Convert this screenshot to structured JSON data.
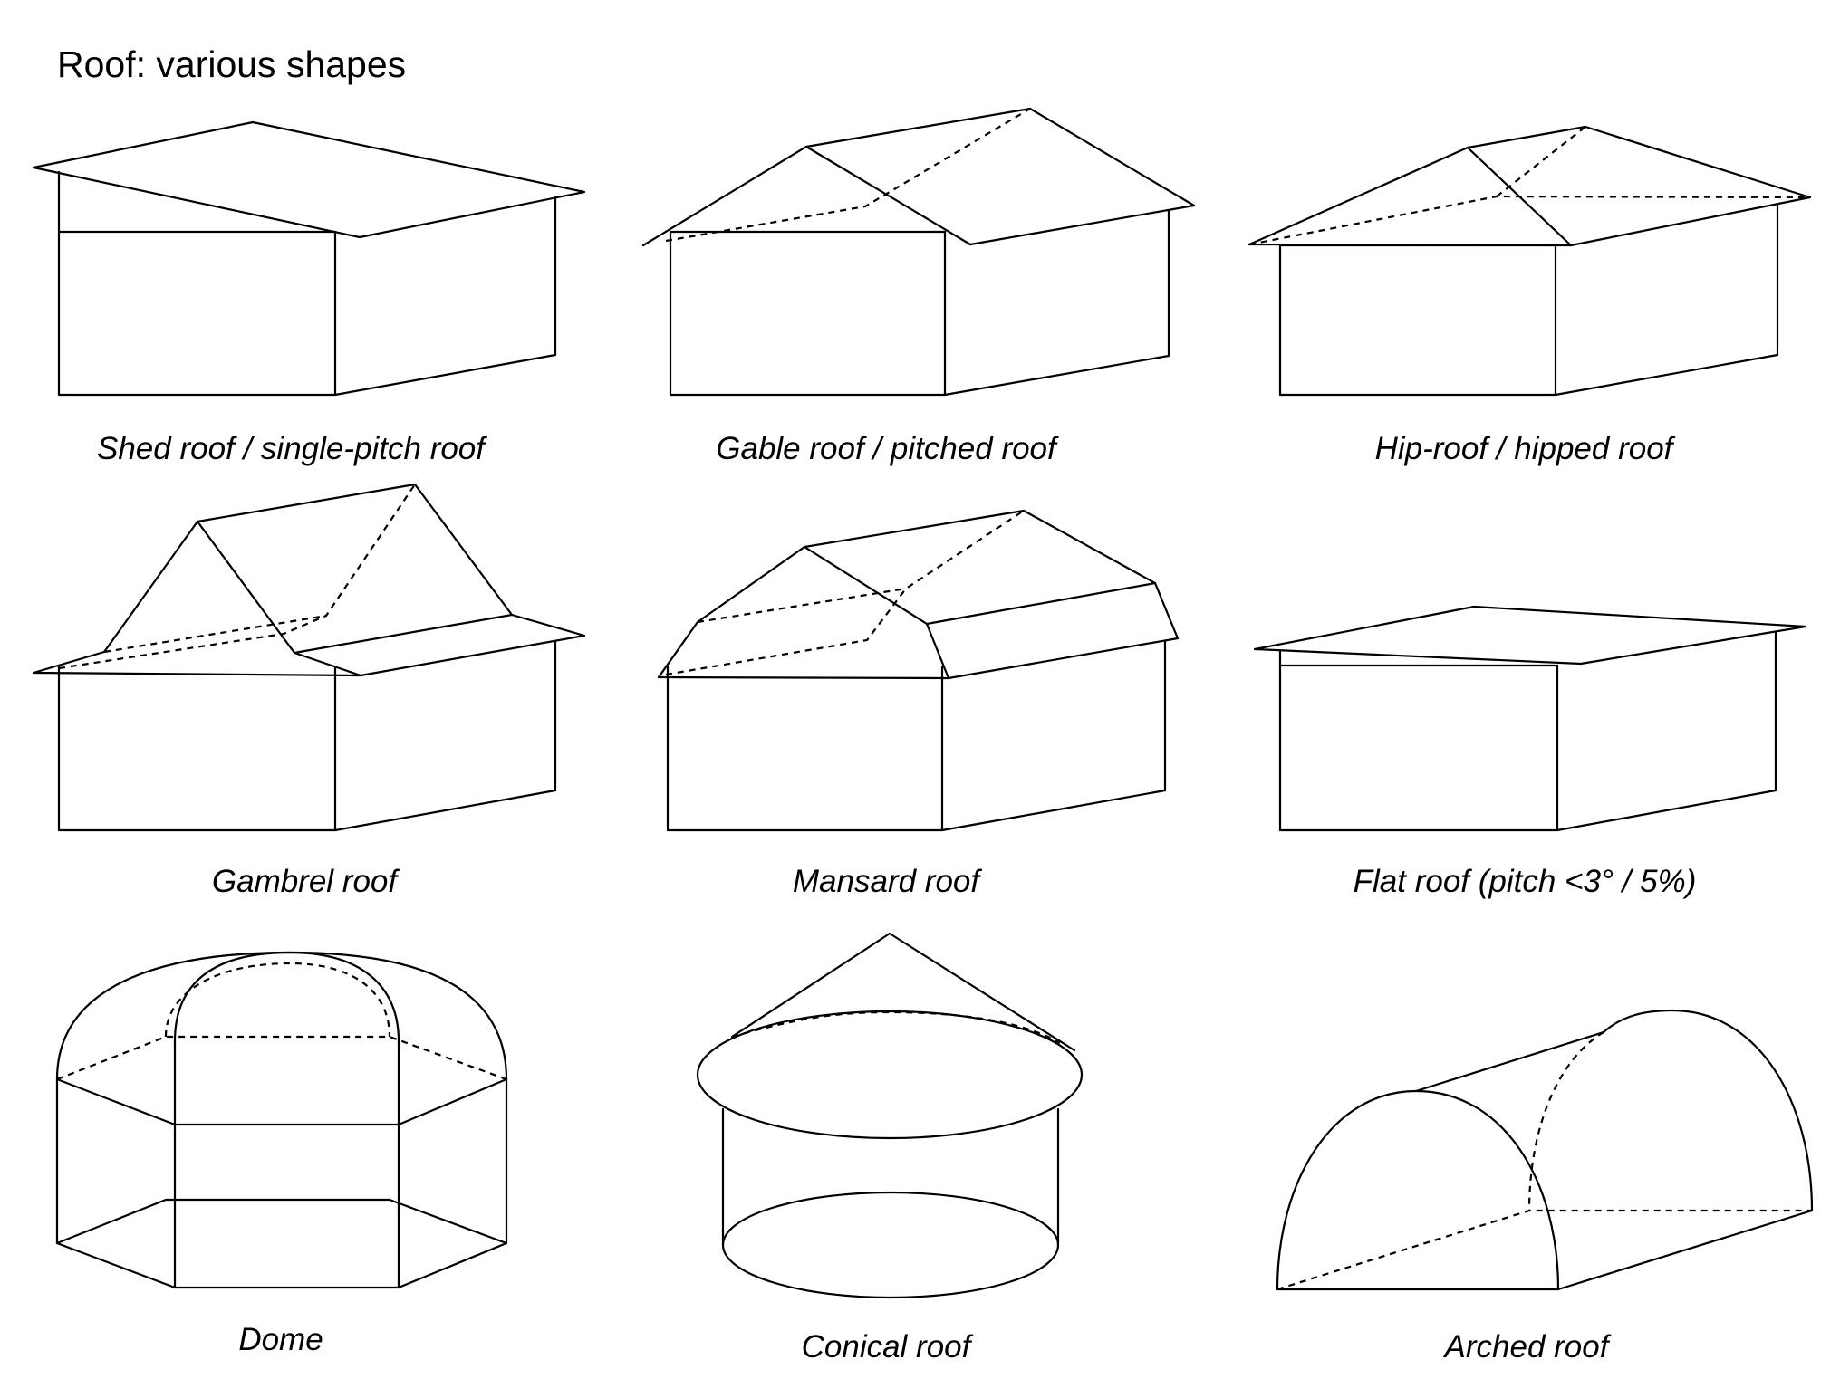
{
  "title": "Roof: various shapes",
  "line_color": "#000000",
  "background_color": "#ffffff",
  "roofs": [
    {
      "id": "shed",
      "caption": "Shed roof / single-pitch roof"
    },
    {
      "id": "gable",
      "caption": "Gable roof / pitched roof"
    },
    {
      "id": "hip",
      "caption": "Hip-roof / hipped roof"
    },
    {
      "id": "gambrel",
      "caption": "Gambrel roof"
    },
    {
      "id": "mansard",
      "caption": "Mansard roof"
    },
    {
      "id": "flat",
      "caption": "Flat roof (pitch <3° / 5%)"
    },
    {
      "id": "dome",
      "caption": "Dome"
    },
    {
      "id": "conical",
      "caption": "Conical roof"
    },
    {
      "id": "arched",
      "caption": "Arched roof"
    }
  ]
}
